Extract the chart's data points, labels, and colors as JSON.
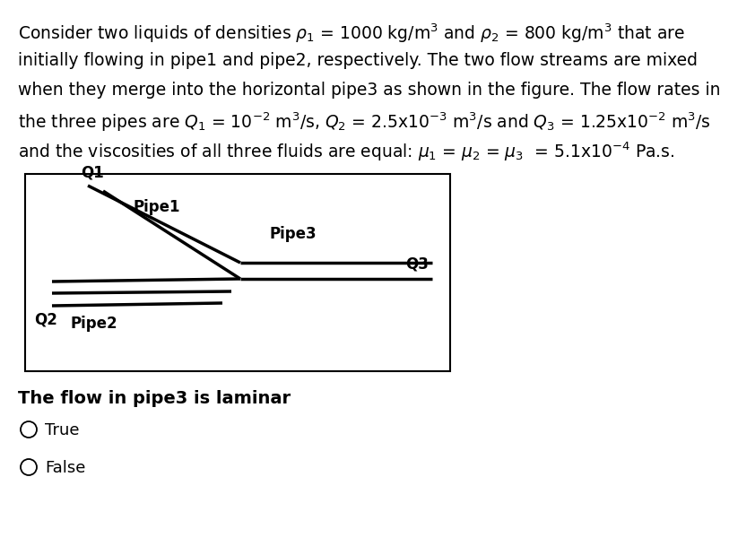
{
  "background_color": "#ffffff",
  "text_color": "#000000",
  "line1": "Consider two liquids of densities $\\rho_1$ = 1000 kg/m$^3$ and $\\rho_2$ = 800 kg/m$^3$ that are",
  "line2": "initially flowing in pipe1 and pipe2, respectively. The two flow streams are mixed",
  "line3": "when they merge into the horizontal pipe3 as shown in the figure. The flow rates in",
  "line4": "the three pipes are $Q_1$ = 10$^{-2}$ m$^3$/s, $Q_2$ = 2.5x10$^{-3}$ m$^3$/s and $Q_3$ = 1.25x10$^{-2}$ m$^3$/s",
  "line5": "and the viscosities of all three fluids are equal: $\\mu_1$ = $\\mu_2$ = $\\mu_3$  = 5.1x10$^{-4}$ Pa.s.",
  "fig_question": "The flow in pipe3 is laminar",
  "option_true": "True",
  "option_false": "False",
  "pipe_color": "#000000",
  "pipe_lw_thick": 2.5,
  "pipe_lw_thin": 1.2,
  "text_fontsize": 13.5,
  "label_fontsize": 12
}
